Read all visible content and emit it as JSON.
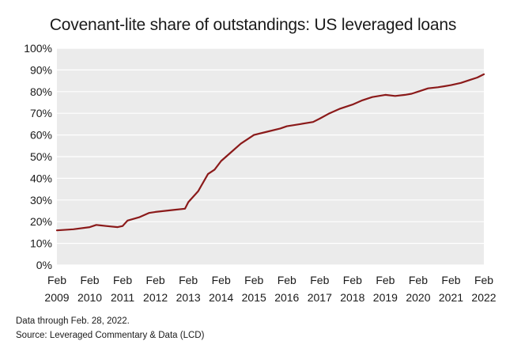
{
  "chart_data": {
    "type": "line",
    "title": "Covenant-lite share of outstandings: US leveraged loans",
    "xlabel": "",
    "ylabel": "",
    "ylim": [
      0,
      100
    ],
    "yticks": [
      "0%",
      "10%",
      "20%",
      "30%",
      "40%",
      "50%",
      "60%",
      "70%",
      "80%",
      "90%",
      "100%"
    ],
    "xticks": [
      {
        "month": "Feb",
        "year": "2009"
      },
      {
        "month": "Feb",
        "year": "2010"
      },
      {
        "month": "Feb",
        "year": "2011"
      },
      {
        "month": "Feb",
        "year": "2012"
      },
      {
        "month": "Feb",
        "year": "2013"
      },
      {
        "month": "Feb",
        "year": "2014"
      },
      {
        "month": "Feb",
        "year": "2015"
      },
      {
        "month": "Feb",
        "year": "2016"
      },
      {
        "month": "Feb",
        "year": "2017"
      },
      {
        "month": "Feb",
        "year": "2018"
      },
      {
        "month": "Feb",
        "year": "2019"
      },
      {
        "month": "Feb",
        "year": "2020"
      },
      {
        "month": "Feb",
        "year": "2021"
      },
      {
        "month": "Feb",
        "year": "2022"
      }
    ],
    "grid": {
      "horizontal": true,
      "vertical": false
    },
    "legend": "none",
    "series": [
      {
        "color": "#8b1a1a",
        "x": [
          2009.0,
          2009.5,
          2010.0,
          2010.2,
          2010.5,
          2010.85,
          2011.0,
          2011.15,
          2011.5,
          2011.8,
          2012.0,
          2012.3,
          2012.6,
          2012.9,
          2013.0,
          2013.3,
          2013.6,
          2013.8,
          2014.0,
          2014.3,
          2014.6,
          2015.0,
          2015.4,
          2015.8,
          2016.0,
          2016.4,
          2016.8,
          2017.0,
          2017.3,
          2017.6,
          2018.0,
          2018.3,
          2018.6,
          2019.0,
          2019.3,
          2019.6,
          2019.8,
          2020.0,
          2020.3,
          2020.6,
          2020.8,
          2021.0,
          2021.3,
          2021.6,
          2021.8,
          2022.0
        ],
        "y": [
          16,
          16.5,
          17.5,
          18.5,
          18,
          17.5,
          18,
          20.5,
          22,
          24,
          24.5,
          25,
          25.5,
          26,
          29,
          34,
          42,
          44,
          48,
          52,
          56,
          60,
          61.5,
          63,
          64,
          65,
          66,
          67.5,
          70,
          72,
          74,
          76,
          77.5,
          78.5,
          78,
          78.5,
          79,
          80,
          81.5,
          82,
          82.5,
          83,
          84,
          85.5,
          86.5,
          88
        ]
      }
    ]
  },
  "notes": {
    "data_through": "Data through Feb. 28, 2022.",
    "source": "Source: Leveraged Commentary & Data (LCD)"
  }
}
